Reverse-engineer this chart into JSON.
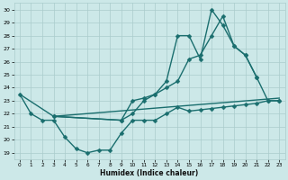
{
  "xlabel": "Humidex (Indice chaleur)",
  "xlim": [
    -0.5,
    23.5
  ],
  "ylim": [
    18.5,
    30.5
  ],
  "yticks": [
    19,
    20,
    21,
    22,
    23,
    24,
    25,
    26,
    27,
    28,
    29,
    30
  ],
  "xticks": [
    0,
    1,
    2,
    3,
    4,
    5,
    6,
    7,
    8,
    9,
    10,
    11,
    12,
    13,
    14,
    15,
    16,
    17,
    18,
    19,
    20,
    21,
    22,
    23
  ],
  "background_color": "#cce8e8",
  "grid_color": "#aacccc",
  "line_color": "#1a6e6e",
  "line_width": 1.0,
  "series": [
    {
      "x": [
        0,
        1,
        2,
        3,
        4,
        5,
        6,
        7,
        8,
        9,
        10,
        11,
        12,
        13,
        14,
        15,
        16,
        17,
        18,
        19,
        20,
        21,
        22,
        23
      ],
      "y": [
        23.5,
        22.0,
        21.5,
        21.5,
        20.2,
        19.3,
        19.0,
        19.2,
        19.2,
        20.5,
        21.5,
        21.5,
        21.5,
        22.0,
        22.5,
        22.2,
        22.3,
        22.4,
        22.5,
        22.6,
        22.7,
        22.8,
        23.0,
        23.0
      ]
    },
    {
      "x": [
        0,
        3,
        23
      ],
      "y": [
        23.5,
        21.8,
        23.2
      ]
    },
    {
      "x": [
        3,
        9,
        10,
        11,
        12,
        13,
        14,
        15,
        16,
        17,
        18,
        19,
        20,
        21
      ],
      "y": [
        21.8,
        21.5,
        23.0,
        23.2,
        23.5,
        24.5,
        28.0,
        28.0,
        26.2,
        30.0,
        28.8,
        27.2,
        26.5,
        24.8
      ]
    },
    {
      "x": [
        3,
        9,
        10,
        11,
        12,
        13,
        14,
        15,
        16,
        17,
        18,
        19,
        20,
        21,
        22,
        23
      ],
      "y": [
        21.8,
        21.5,
        22.0,
        23.0,
        23.5,
        24.0,
        24.5,
        26.2,
        26.5,
        28.0,
        29.5,
        27.2,
        26.5,
        24.8,
        23.0,
        23.0
      ]
    }
  ]
}
